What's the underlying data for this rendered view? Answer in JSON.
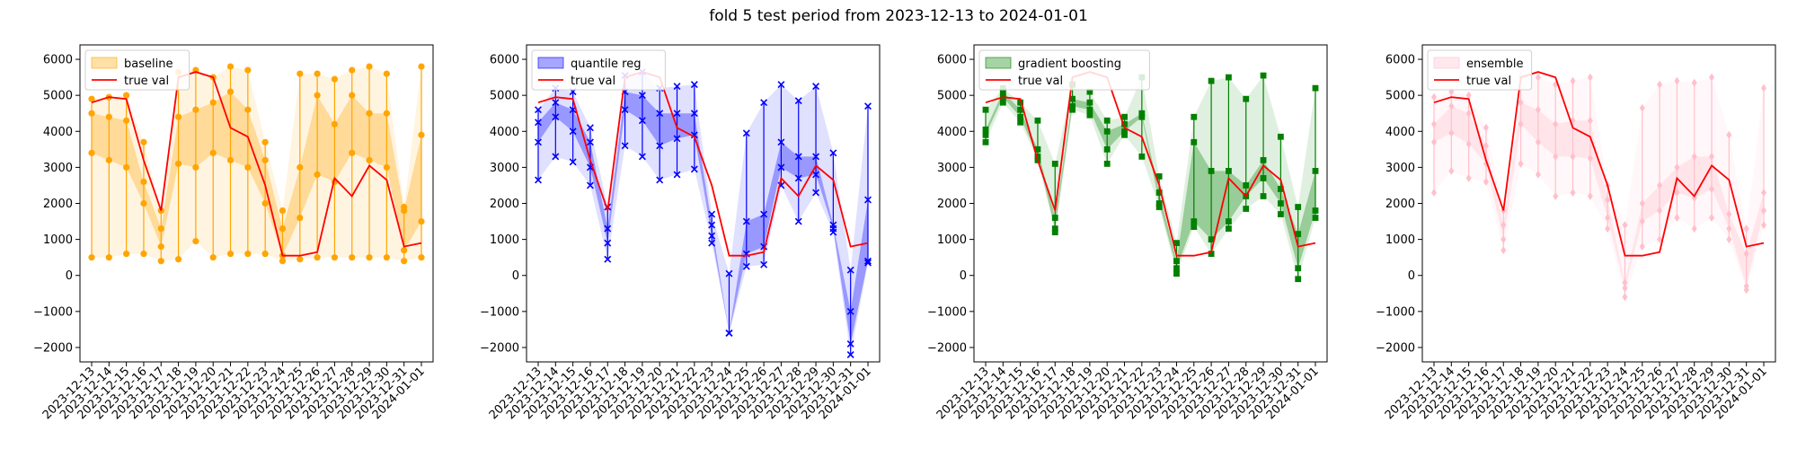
{
  "title": "fold 5 test period from 2023-12-13 to 2024-01-01",
  "dates": [
    "2023-12-13",
    "2023-12-14",
    "2023-12-15",
    "2023-12-16",
    "2023-12-17",
    "2023-12-18",
    "2023-12-19",
    "2023-12-20",
    "2023-12-21",
    "2023-12-22",
    "2023-12-23",
    "2023-12-24",
    "2023-12-25",
    "2023-12-26",
    "2023-12-27",
    "2023-12-28",
    "2023-12-29",
    "2023-12-30",
    "2023-12-31",
    "2024-01-01"
  ],
  "true_val": [
    4800,
    4950,
    4900,
    3200,
    1800,
    5500,
    5650,
    5500,
    4100,
    3850,
    2500,
    550,
    550,
    650,
    2700,
    2200,
    3050,
    2650,
    800,
    900
  ],
  "chart_data": [
    {
      "type": "line",
      "title": "",
      "legend": [
        "baseline",
        "true val"
      ],
      "legend_position": "top-left",
      "color": "#ffa500",
      "marker": "circle",
      "ylim": [
        -2400,
        6400
      ],
      "yticks": [
        -2000,
        -1000,
        0,
        1000,
        2000,
        3000,
        4000,
        5000,
        6000
      ],
      "intervals": [
        [
          500,
          3400,
          4500,
          4900
        ],
        [
          500,
          3200,
          4400,
          4950
        ],
        [
          600,
          3000,
          4300,
          5000
        ],
        [
          600,
          2000,
          2600,
          3700
        ],
        [
          400,
          800,
          1300,
          1800
        ],
        [
          450,
          3100,
          4400,
          5650
        ],
        [
          950,
          3000,
          4600,
          5700
        ],
        [
          500,
          3400,
          4800,
          5500
        ],
        [
          600,
          3200,
          5100,
          5800
        ],
        [
          600,
          3000,
          4600,
          5700
        ],
        [
          600,
          2000,
          3200,
          3700
        ],
        [
          400,
          550,
          1300,
          1800
        ],
        [
          450,
          1600,
          3000,
          5600
        ],
        [
          500,
          2800,
          5000,
          5600
        ],
        [
          500,
          2600,
          4200,
          5450
        ],
        [
          500,
          3400,
          5000,
          5700
        ],
        [
          500,
          3200,
          4500,
          5800
        ],
        [
          500,
          3000,
          4500,
          5600
        ],
        [
          400,
          700,
          1800,
          1900
        ],
        [
          500,
          1500,
          3900,
          5800
        ]
      ]
    },
    {
      "type": "line",
      "title": "",
      "legend": [
        "quantile reg",
        "true val"
      ],
      "legend_position": "top-left",
      "color": "#0000ff",
      "marker": "x",
      "ylim": [
        -2400,
        6400
      ],
      "yticks": [
        -2000,
        -1000,
        0,
        1000,
        2000,
        3000,
        4000,
        5000,
        6000
      ],
      "intervals": [
        [
          2650,
          3700,
          4250,
          4600
        ],
        [
          3300,
          4400,
          4800,
          5200
        ],
        [
          3150,
          4000,
          4600,
          5100
        ],
        [
          2500,
          3000,
          3700,
          4100
        ],
        [
          450,
          900,
          1300,
          1900
        ],
        [
          3600,
          4600,
          5100,
          5550
        ],
        [
          3300,
          4300,
          5000,
          5650
        ],
        [
          2650,
          3600,
          4500,
          5200
        ],
        [
          2800,
          3800,
          4500,
          5250
        ],
        [
          2950,
          3900,
          4500,
          5300
        ],
        [
          900,
          1100,
          1400,
          1700
        ],
        [
          -1600,
          -1600,
          -1600,
          50
        ],
        [
          250,
          600,
          1500,
          3950
        ],
        [
          300,
          800,
          1700,
          4800
        ],
        [
          2500,
          3000,
          3700,
          5300
        ],
        [
          1500,
          2700,
          3300,
          4850
        ],
        [
          2300,
          2800,
          3300,
          5250
        ],
        [
          1200,
          1300,
          1400,
          3400
        ],
        [
          -2200,
          -1900,
          -1000,
          150
        ],
        [
          350,
          400,
          2100,
          4700
        ]
      ]
    },
    {
      "type": "line",
      "title": "",
      "legend": [
        "gradient boosting",
        "true val"
      ],
      "legend_position": "top-left",
      "color": "#008000",
      "marker": "square",
      "ylim": [
        -2400,
        6400
      ],
      "yticks": [
        -2000,
        -1000,
        0,
        1000,
        2000,
        3000,
        4000,
        5000,
        6000
      ],
      "intervals": [
        [
          3700,
          3900,
          4050,
          4600
        ],
        [
          4800,
          4950,
          5100,
          5200
        ],
        [
          4250,
          4400,
          4600,
          4800
        ],
        [
          3200,
          3300,
          3500,
          4300
        ],
        [
          1200,
          1300,
          1600,
          3100
        ],
        [
          4600,
          4700,
          4900,
          5300
        ],
        [
          4450,
          4600,
          4800,
          5100
        ],
        [
          3100,
          3500,
          4000,
          4300
        ],
        [
          3900,
          4000,
          4200,
          4400
        ],
        [
          3300,
          4400,
          4500,
          5500
        ],
        [
          1900,
          2000,
          2300,
          2750
        ],
        [
          50,
          200,
          400,
          900
        ],
        [
          1350,
          1500,
          3700,
          4400
        ],
        [
          600,
          1000,
          2900,
          5400
        ],
        [
          1300,
          1500,
          2900,
          5500
        ],
        [
          1850,
          2200,
          2500,
          4900
        ],
        [
          2200,
          2700,
          3200,
          5550
        ],
        [
          1700,
          2000,
          2400,
          3850
        ],
        [
          -100,
          200,
          1150,
          1900
        ],
        [
          1600,
          1800,
          2900,
          5200
        ]
      ]
    },
    {
      "type": "line",
      "title": "",
      "legend": [
        "ensemble",
        "true val"
      ],
      "legend_position": "top-left",
      "color": "#ffc0cb",
      "marker": "diamond",
      "ylim": [
        -2400,
        6400
      ],
      "yticks": [
        -2000,
        -1000,
        0,
        1000,
        2000,
        3000,
        4000,
        5000,
        6000
      ],
      "intervals": [
        [
          2300,
          3700,
          4200,
          4950
        ],
        [
          2900,
          3950,
          4700,
          5100
        ],
        [
          2700,
          3650,
          4500,
          5000
        ],
        [
          2600,
          3100,
          3600,
          4100
        ],
        [
          700,
          1000,
          1400,
          1800
        ],
        [
          3100,
          4200,
          4800,
          5550
        ],
        [
          2800,
          3700,
          4600,
          5500
        ],
        [
          2200,
          3300,
          4200,
          5300
        ],
        [
          2300,
          3300,
          4300,
          5400
        ],
        [
          2200,
          3250,
          4300,
          5500
        ],
        [
          1300,
          1600,
          2100,
          2500
        ],
        [
          -600,
          -350,
          -200,
          1400
        ],
        [
          800,
          1500,
          2000,
          4650
        ],
        [
          1000,
          1800,
          2500,
          5300
        ],
        [
          1600,
          2300,
          3000,
          5400
        ],
        [
          1300,
          2150,
          3300,
          5350
        ],
        [
          1600,
          2400,
          3300,
          5500
        ],
        [
          1000,
          1300,
          1700,
          3900
        ],
        [
          -400,
          -300,
          600,
          1300
        ],
        [
          1400,
          1800,
          2300,
          5200
        ]
      ]
    }
  ]
}
